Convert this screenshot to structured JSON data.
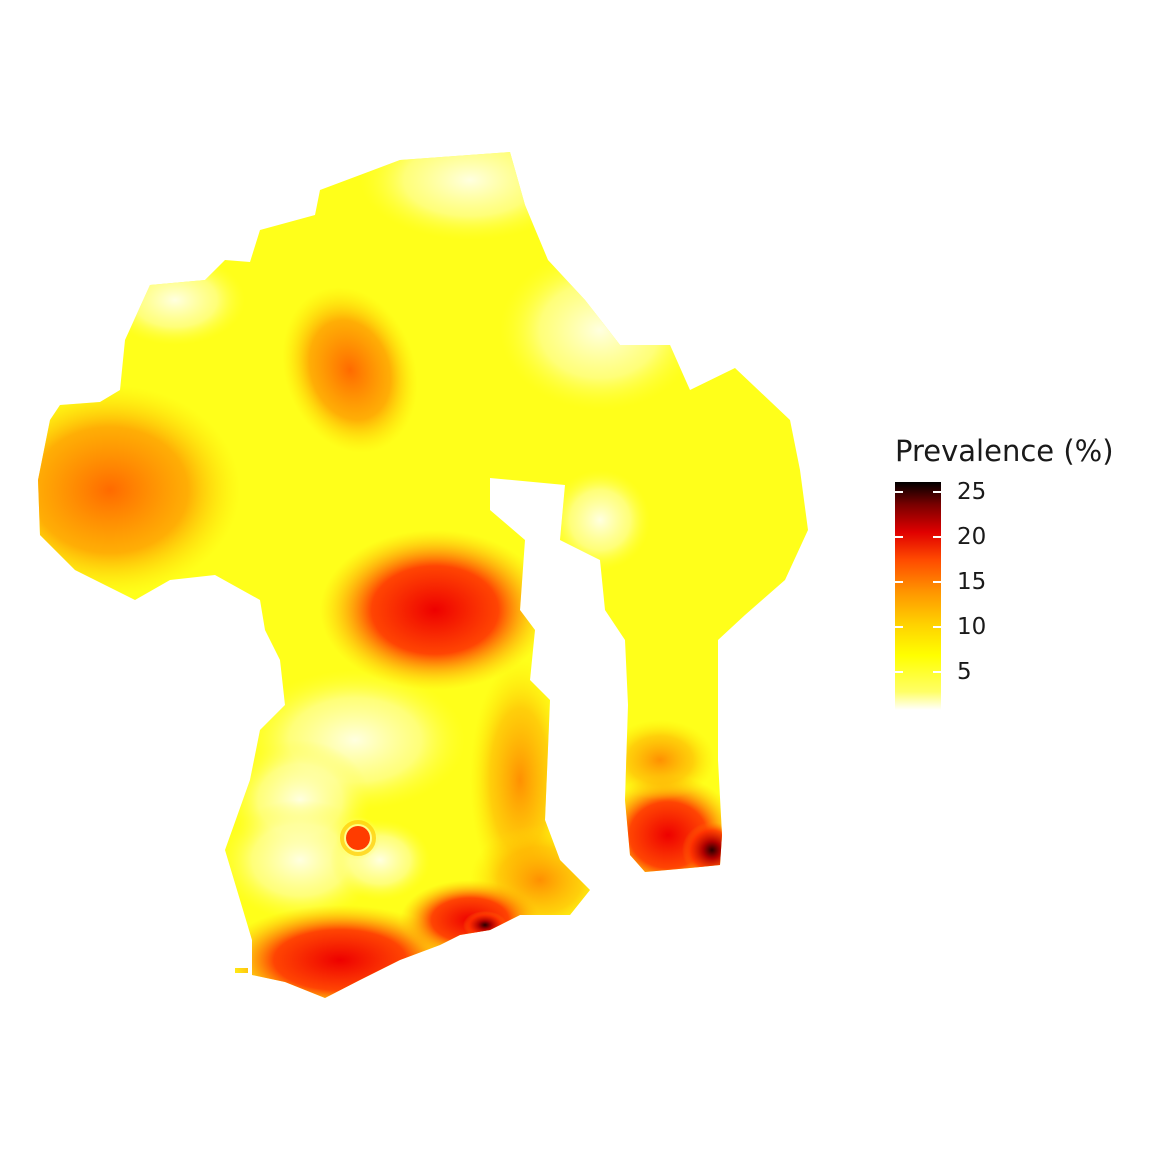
{
  "map": {
    "type": "raster-heatmap",
    "background": "#ffffff"
  },
  "legend": {
    "title": "Prevalence (%)",
    "labels": [
      "25",
      "20",
      "15",
      "10",
      "5"
    ],
    "values": [
      25,
      20,
      15,
      10,
      5
    ],
    "range": [
      1,
      26
    ],
    "colors": [
      "#ffffff",
      "#ffff00",
      "#ff9400",
      "#e00000",
      "#000000"
    ]
  }
}
